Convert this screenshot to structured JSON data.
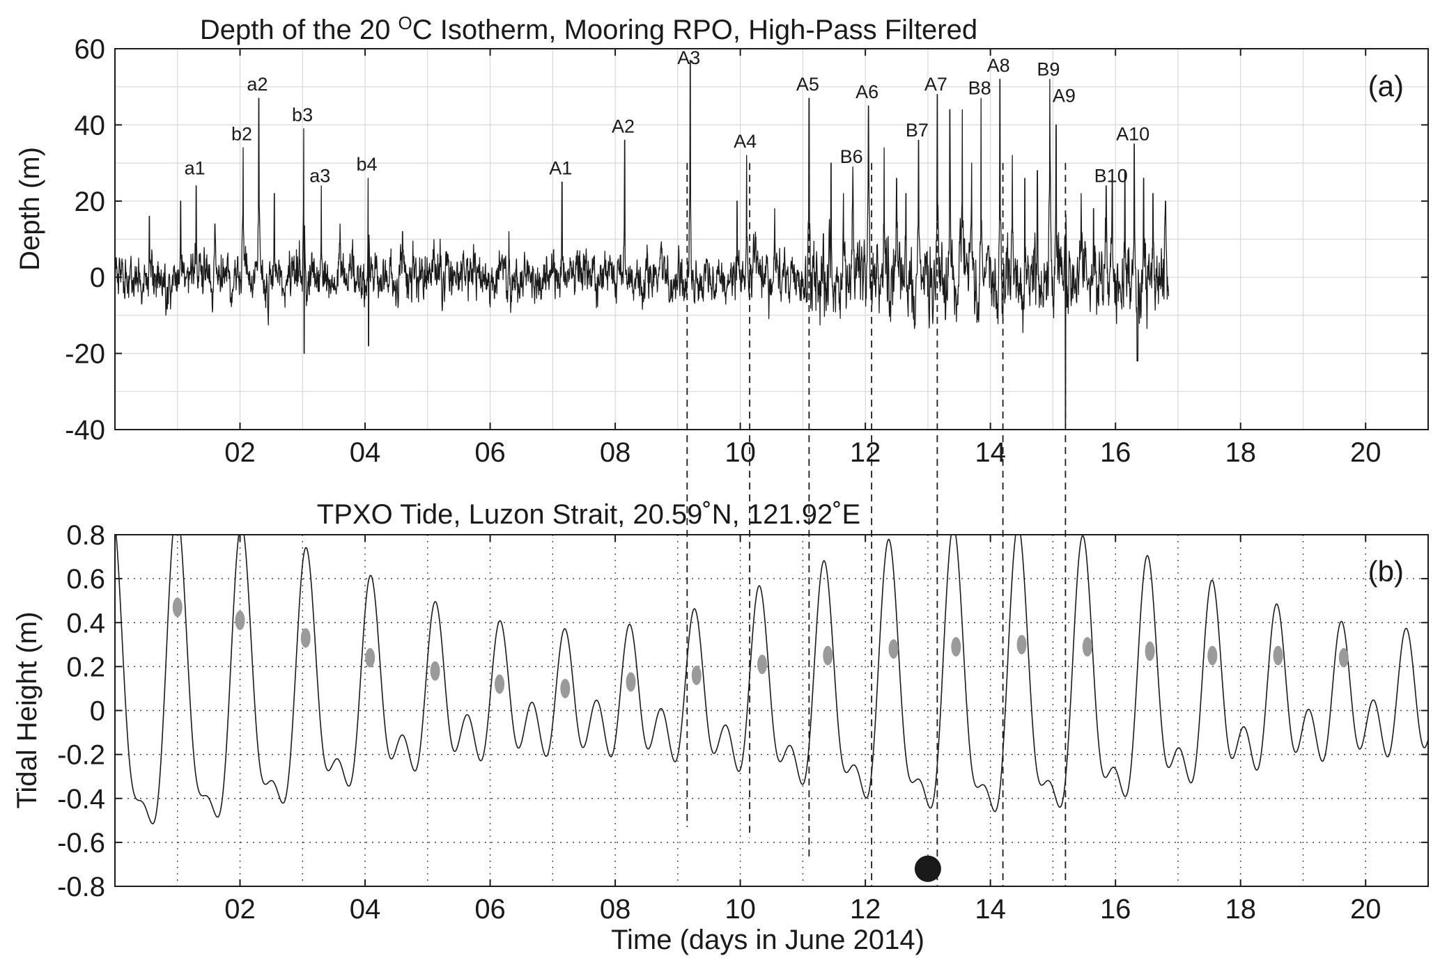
{
  "chart_data": [
    {
      "type": "line",
      "panel": "(a)",
      "title": "Depth of the 20 °C Isotherm, Mooring RPO, High-Pass Filtered",
      "title_parts": {
        "before": "Depth of the 20 ",
        "superscript": "O",
        "after": "C Isotherm, Mooring RPO, High-Pass Filtered"
      },
      "ylabel": "Depth (m)",
      "xlabel": "",
      "xlim": [
        0,
        21
      ],
      "ylim": [
        -40,
        60
      ],
      "x_ticks": [
        2,
        4,
        6,
        8,
        10,
        12,
        14,
        16,
        18,
        20
      ],
      "x_tick_labels": [
        "02",
        "04",
        "06",
        "08",
        "10",
        "12",
        "14",
        "16",
        "18",
        "20"
      ],
      "y_ticks": [
        -40,
        -20,
        0,
        20,
        40,
        60
      ],
      "y_tick_labels": [
        "-40",
        "-20",
        "0",
        "20",
        "40",
        "60"
      ],
      "grid": true,
      "grid_style": "solid",
      "data_end_day": 16.85,
      "series_color": "#1a1a1a",
      "series": [
        {
          "values": "noisy high-pass filtered isotherm displacement, roughly ±10 m background amplitude growing to ±15 m after day 11, with sharp positive spikes at the labelled events"
        }
      ],
      "events": [
        {
          "label": "a1",
          "x": 1.3,
          "peak": 24,
          "label_y": 27
        },
        {
          "label": "b2",
          "x": 2.05,
          "peak": 34,
          "label_y": 36
        },
        {
          "label": "a2",
          "x": 2.3,
          "peak": 47,
          "label_y": 49
        },
        {
          "label": "b3",
          "x": 3.02,
          "peak": 39,
          "label_y": 41
        },
        {
          "label": "a3",
          "x": 3.3,
          "peak": 24,
          "label_y": 25
        },
        {
          "label": "b4",
          "x": 4.05,
          "peak": 26,
          "label_y": 28
        },
        {
          "label": "A1",
          "x": 7.15,
          "peak": 25,
          "label_y": 27
        },
        {
          "label": "A2",
          "x": 8.15,
          "peak": 36,
          "label_y": 38
        },
        {
          "label": "A3",
          "x": 9.2,
          "peak": 57,
          "label_y": 56
        },
        {
          "label": "A4",
          "x": 10.1,
          "peak": 32,
          "label_y": 34
        },
        {
          "label": "A5",
          "x": 11.1,
          "peak": 47,
          "label_y": 49
        },
        {
          "label": "B6",
          "x": 11.8,
          "peak": 29,
          "label_y": 30
        },
        {
          "label": "A6",
          "x": 12.05,
          "peak": 45,
          "label_y": 47
        },
        {
          "label": "B7",
          "x": 12.85,
          "peak": 36,
          "label_y": 37
        },
        {
          "label": "A7",
          "x": 13.15,
          "peak": 48,
          "label_y": 49
        },
        {
          "label": "B8",
          "x": 13.85,
          "peak": 47,
          "label_y": 48
        },
        {
          "label": "A8",
          "x": 14.15,
          "peak": 52,
          "label_y": 54
        },
        {
          "label": "B9",
          "x": 14.95,
          "peak": 52,
          "label_y": 53
        },
        {
          "label": "A9",
          "x": 15.2,
          "peak": 45,
          "label_y": 46
        },
        {
          "label": "B10",
          "x": 15.95,
          "peak": 28,
          "label_y": 25
        },
        {
          "label": "A10",
          "x": 16.3,
          "peak": 35,
          "label_y": 36
        }
      ]
    },
    {
      "type": "line",
      "panel": "(b)",
      "title": "TPXO Tide, Luzon Strait, 20.59˚N, 121.92˚E",
      "ylabel": "Tidal Height (m)",
      "xlabel": "Time (days in June 2014)",
      "xlim": [
        0,
        21
      ],
      "ylim": [
        -0.8,
        0.8
      ],
      "x_ticks": [
        2,
        4,
        6,
        8,
        10,
        12,
        14,
        16,
        18,
        20
      ],
      "x_tick_labels": [
        "02",
        "04",
        "06",
        "08",
        "10",
        "12",
        "14",
        "16",
        "18",
        "20"
      ],
      "y_ticks": [
        -0.8,
        -0.6,
        -0.4,
        -0.2,
        0,
        0.2,
        0.4,
        0.6,
        0.8
      ],
      "y_tick_labels": [
        "-0.8",
        "-0.6",
        "-0.4",
        "-0.2",
        "0",
        "0.2",
        "0.4",
        "0.6",
        "0.8"
      ],
      "grid": true,
      "grid_style": "dotted",
      "series_color": "#1a1a1a",
      "series": [
        {
          "values": "mixed diurnal/semidiurnal tide; diurnal amplitude grows from ~0.5 m (June 1-8) to ~0.75 m spring tide (June 13-15) and decays again"
        }
      ],
      "dashed_event_lines": [
        {
          "x": 9.15,
          "y_end": -0.53
        },
        {
          "x": 10.15,
          "y_end": -0.58
        },
        {
          "x": 11.1,
          "y_end": -0.68
        },
        {
          "x": 12.1,
          "y_end": -0.8
        },
        {
          "x": 13.15,
          "y_end": -0.8
        },
        {
          "x": 14.2,
          "y_end": -0.8
        },
        {
          "x": 15.2,
          "y_end": -0.8
        }
      ],
      "gray_markers": [
        {
          "x": 1.0,
          "y": 0.47
        },
        {
          "x": 2.0,
          "y": 0.41
        },
        {
          "x": 3.05,
          "y": 0.33
        },
        {
          "x": 4.08,
          "y": 0.24
        },
        {
          "x": 5.12,
          "y": 0.18
        },
        {
          "x": 6.15,
          "y": 0.12
        },
        {
          "x": 7.2,
          "y": 0.1
        },
        {
          "x": 8.25,
          "y": 0.13
        },
        {
          "x": 9.3,
          "y": 0.16
        },
        {
          "x": 10.35,
          "y": 0.21
        },
        {
          "x": 11.4,
          "y": 0.25
        },
        {
          "x": 12.45,
          "y": 0.28
        },
        {
          "x": 13.45,
          "y": 0.29
        },
        {
          "x": 14.5,
          "y": 0.3
        },
        {
          "x": 15.55,
          "y": 0.29
        },
        {
          "x": 16.55,
          "y": 0.27
        },
        {
          "x": 17.55,
          "y": 0.25
        },
        {
          "x": 18.6,
          "y": 0.25
        },
        {
          "x": 19.65,
          "y": 0.24
        }
      ],
      "black_marker": {
        "x": 13.0,
        "y": -0.72
      }
    }
  ]
}
